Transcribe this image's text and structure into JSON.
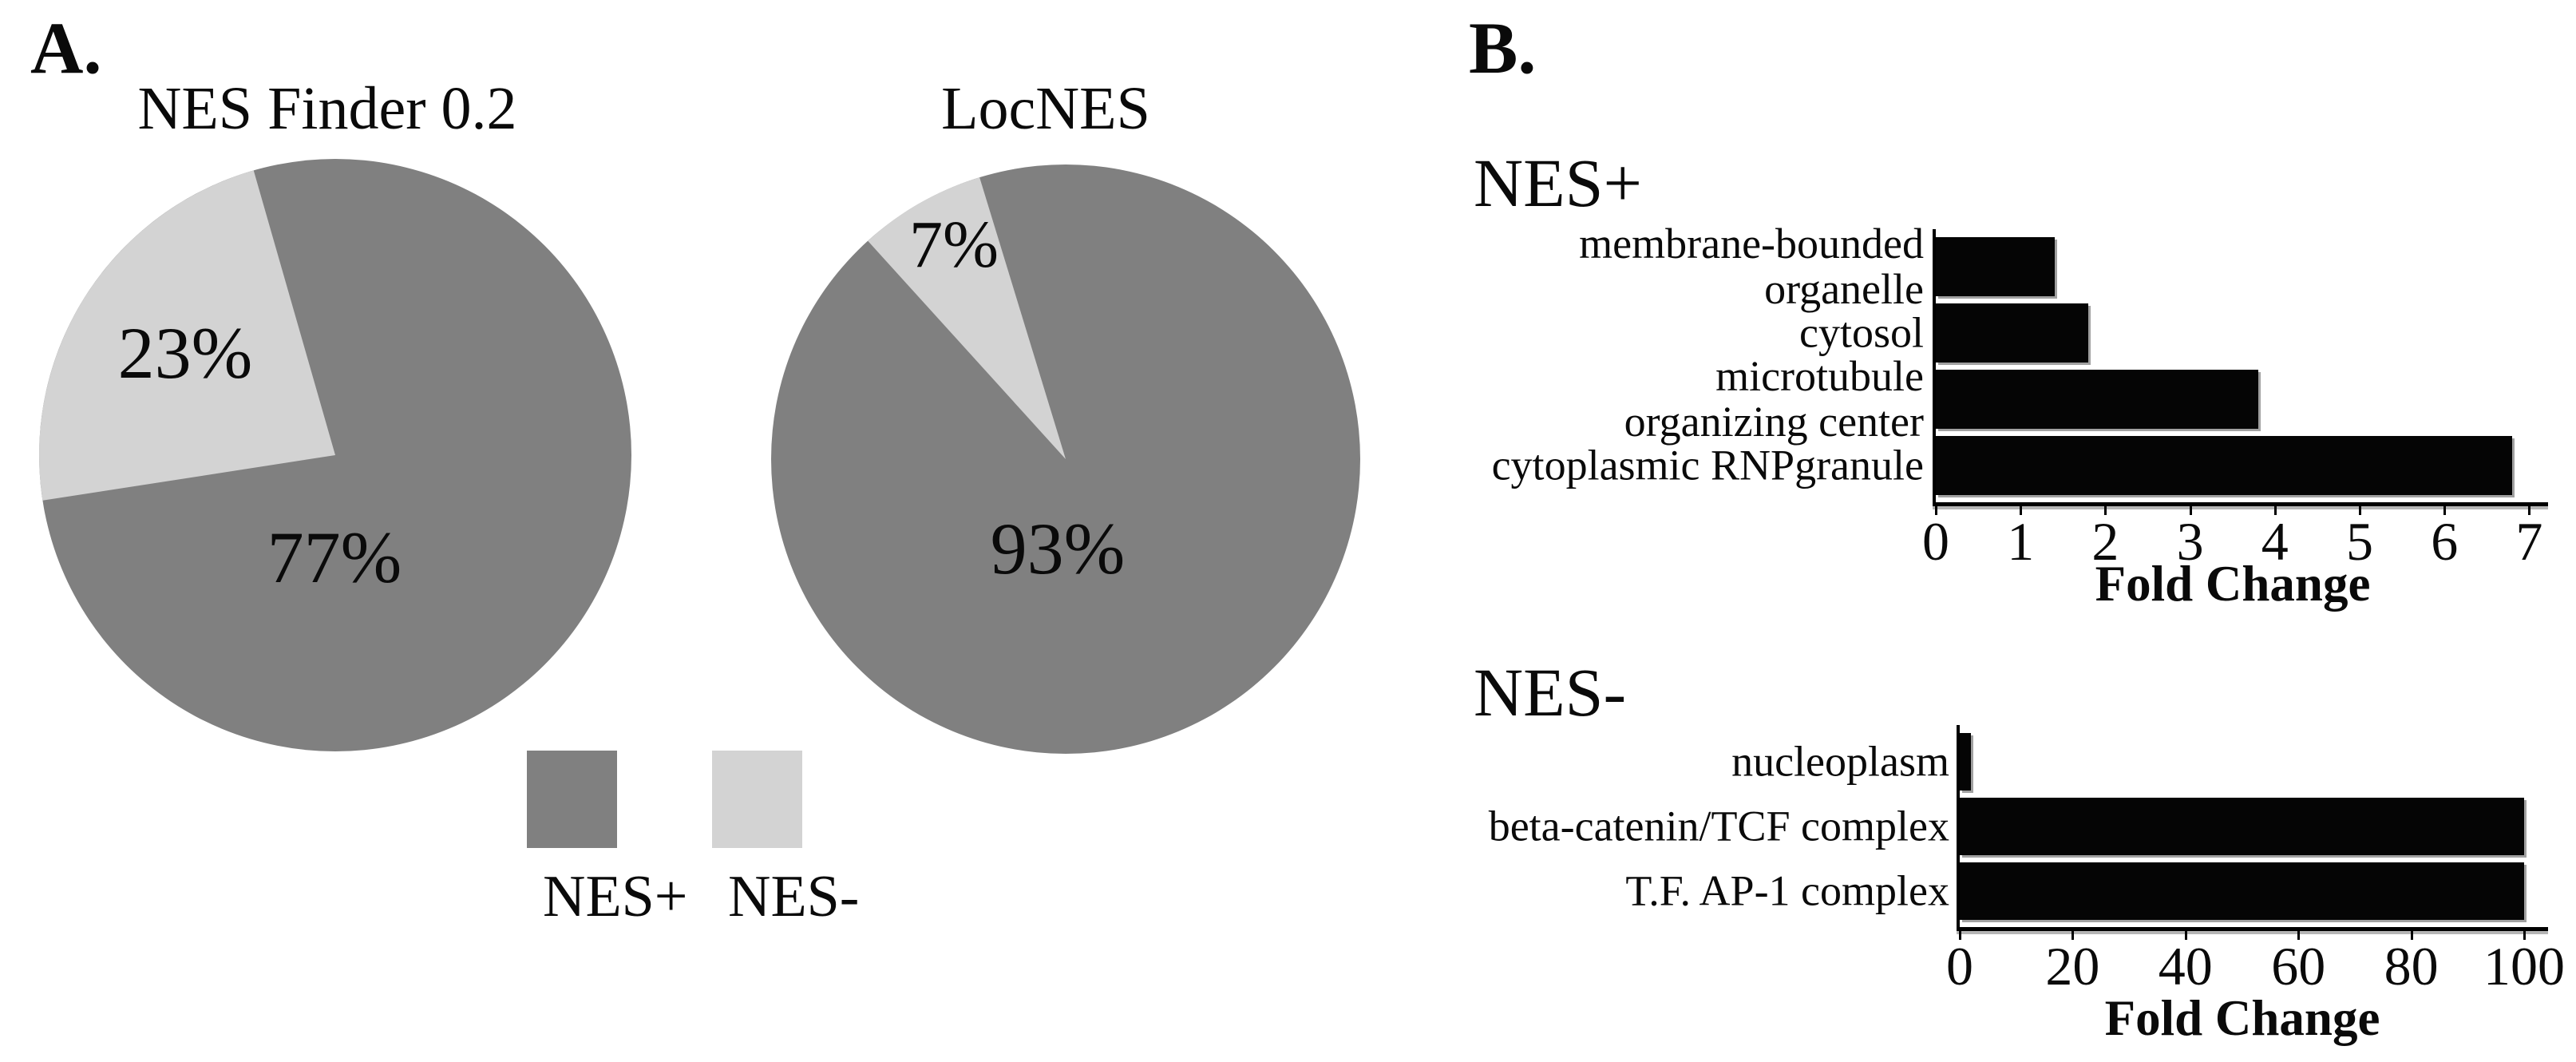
{
  "panel_a": {
    "label": "A.",
    "legend": [
      {
        "label": "NES+",
        "color": "#808080"
      },
      {
        "label": "NES-",
        "color": "#d3d3d3"
      }
    ]
  },
  "panel_b": {
    "label": "B."
  },
  "chart_data": [
    {
      "type": "pie",
      "title": "NES Finder 0.2",
      "labels": [
        "NES+",
        "NES-"
      ],
      "values": [
        77,
        23
      ],
      "value_labels": [
        "77%",
        "23%"
      ],
      "colors": [
        "#808080",
        "#d3d3d3"
      ],
      "legend_position": "bottom"
    },
    {
      "type": "pie",
      "title": "LocNES",
      "labels": [
        "NES+",
        "NES-"
      ],
      "values": [
        93,
        7
      ],
      "value_labels": [
        "93%",
        "7%"
      ],
      "colors": [
        "#808080",
        "#d3d3d3"
      ],
      "legend_position": "bottom"
    },
    {
      "type": "bar",
      "orientation": "horizontal",
      "title": "NES+",
      "categories": [
        "membrane-bounded organelle",
        "cytosol",
        "microtubule organizing center",
        "cytoplasmic RNPgranule"
      ],
      "category_lines": [
        [
          "membrane-bounded",
          "organelle"
        ],
        [
          "cytosol"
        ],
        [
          "microtubule",
          "organizing center"
        ],
        [
          "cytoplasmic RNPgranule"
        ]
      ],
      "values": [
        1.4,
        1.8,
        3.8,
        6.8
      ],
      "xlabel": "Fold Change",
      "xlim": [
        0,
        7
      ],
      "xticks": [
        0,
        1,
        2,
        3,
        4,
        5,
        6,
        7
      ],
      "bar_color": "#050505",
      "grid": false
    },
    {
      "type": "bar",
      "orientation": "horizontal",
      "title": "NES-",
      "categories": [
        "nucleoplasm",
        "beta-catenin/TCF complex",
        "T.F. AP-1 complex"
      ],
      "category_lines": [
        [
          "nucleoplasm"
        ],
        [
          "beta-catenin/TCF complex"
        ],
        [
          "T.F. AP-1 complex"
        ]
      ],
      "values": [
        2,
        100,
        100
      ],
      "xlabel": "Fold Change",
      "xlim": [
        0,
        100
      ],
      "xticks": [
        0,
        20,
        40,
        60,
        80,
        100
      ],
      "bar_color": "#050505",
      "grid": false
    }
  ]
}
